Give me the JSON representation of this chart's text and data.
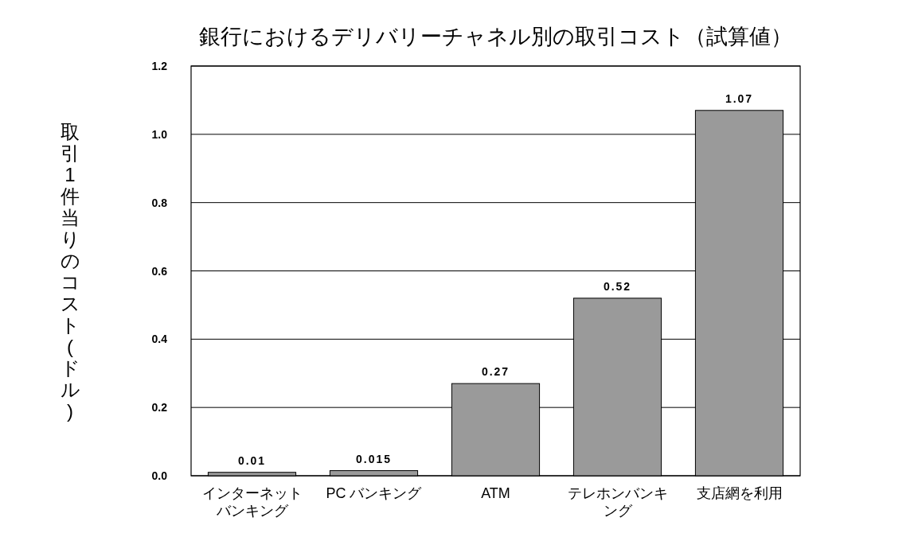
{
  "chart_data": {
    "type": "bar",
    "title": "銀行におけるデリバリーチャネル別の取引コスト（試算値）",
    "ylabel": "取引1件当りのコスト(ドル)",
    "categories": [
      "インターネットバンキング",
      "PC バンキング",
      "ATM",
      "テレホンバンキング",
      "支店網を利用"
    ],
    "values": [
      0.01,
      0.015,
      0.27,
      0.52,
      1.07
    ],
    "color": "#9a9a9a",
    "ylim": [
      0,
      1.2
    ],
    "yticks": [
      {
        "value": 0,
        "label": "0.0"
      },
      0.2,
      0.4,
      0.6,
      0.8,
      {
        "value": 1,
        "label": "1.0"
      },
      1.2
    ],
    "grid": "y",
    "data_labels": true
  }
}
